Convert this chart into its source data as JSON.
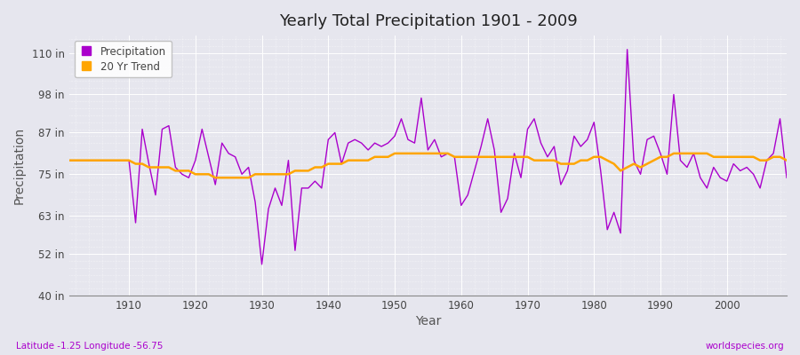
{
  "title": "Yearly Total Precipitation 1901 - 2009",
  "xlabel": "Year",
  "ylabel": "Precipitation",
  "xlim": [
    1901,
    2009
  ],
  "ylim": [
    40,
    115
  ],
  "ytick_labels": [
    "40 in",
    "52 in",
    "63 in",
    "75 in",
    "87 in",
    "98 in",
    "110 in"
  ],
  "ytick_values": [
    40,
    52,
    63,
    75,
    87,
    98,
    110
  ],
  "xtick_values": [
    1910,
    1920,
    1930,
    1940,
    1950,
    1960,
    1970,
    1980,
    1990,
    2000
  ],
  "precip_color": "#AA00CC",
  "trend_color": "#FFA500",
  "bg_color": "#E6E6EE",
  "plot_bg_color": "#E6E6EE",
  "legend_labels": [
    "Precipitation",
    "20 Yr Trend"
  ],
  "subtitle_left": "Latitude -1.25 Longitude -56.75",
  "subtitle_right": "worldspecies.org",
  "years": [
    1901,
    1902,
    1903,
    1904,
    1905,
    1906,
    1907,
    1908,
    1909,
    1910,
    1911,
    1912,
    1913,
    1914,
    1915,
    1916,
    1917,
    1918,
    1919,
    1920,
    1921,
    1922,
    1923,
    1924,
    1925,
    1926,
    1927,
    1928,
    1929,
    1930,
    1931,
    1932,
    1933,
    1934,
    1935,
    1936,
    1937,
    1938,
    1939,
    1940,
    1941,
    1942,
    1943,
    1944,
    1945,
    1946,
    1947,
    1948,
    1949,
    1950,
    1951,
    1952,
    1953,
    1954,
    1955,
    1956,
    1957,
    1958,
    1959,
    1960,
    1961,
    1962,
    1963,
    1964,
    1965,
    1966,
    1967,
    1968,
    1969,
    1970,
    1971,
    1972,
    1973,
    1974,
    1975,
    1976,
    1977,
    1978,
    1979,
    1980,
    1981,
    1982,
    1983,
    1984,
    1985,
    1986,
    1987,
    1988,
    1989,
    1990,
    1991,
    1992,
    1993,
    1994,
    1995,
    1996,
    1997,
    1998,
    1999,
    2000,
    2001,
    2002,
    2003,
    2004,
    2005,
    2006,
    2007,
    2008,
    2009
  ],
  "precip": [
    79,
    79,
    79,
    79,
    79,
    79,
    79,
    79,
    79,
    79,
    61,
    88,
    78,
    69,
    88,
    89,
    77,
    75,
    74,
    79,
    88,
    80,
    72,
    84,
    81,
    80,
    75,
    77,
    67,
    49,
    65,
    71,
    66,
    79,
    53,
    71,
    71,
    73,
    71,
    85,
    87,
    78,
    84,
    85,
    84,
    82,
    84,
    83,
    84,
    86,
    91,
    85,
    84,
    97,
    82,
    85,
    80,
    81,
    80,
    66,
    69,
    76,
    83,
    91,
    82,
    64,
    68,
    81,
    74,
    88,
    91,
    84,
    80,
    83,
    72,
    76,
    86,
    83,
    85,
    90,
    76,
    59,
    64,
    58,
    111,
    79,
    75,
    85,
    86,
    81,
    75,
    98,
    79,
    77,
    81,
    74,
    71,
    77,
    74,
    73,
    78,
    76,
    77,
    75,
    71,
    79,
    81,
    91,
    74
  ],
  "trend": [
    79,
    79,
    79,
    79,
    79,
    79,
    79,
    79,
    79,
    79,
    78,
    78,
    77,
    77,
    77,
    77,
    76,
    76,
    76,
    75,
    75,
    75,
    74,
    74,
    74,
    74,
    74,
    74,
    75,
    75,
    75,
    75,
    75,
    75,
    76,
    76,
    76,
    77,
    77,
    78,
    78,
    78,
    79,
    79,
    79,
    79,
    80,
    80,
    80,
    81,
    81,
    81,
    81,
    81,
    81,
    81,
    81,
    81,
    80,
    80,
    80,
    80,
    80,
    80,
    80,
    80,
    80,
    80,
    80,
    80,
    79,
    79,
    79,
    79,
    78,
    78,
    78,
    79,
    79,
    80,
    80,
    79,
    78,
    76,
    77,
    78,
    77,
    78,
    79,
    80,
    80,
    81,
    81,
    81,
    81,
    81,
    81,
    80,
    80,
    80,
    80,
    80,
    80,
    80,
    79,
    79,
    80,
    80,
    79
  ]
}
